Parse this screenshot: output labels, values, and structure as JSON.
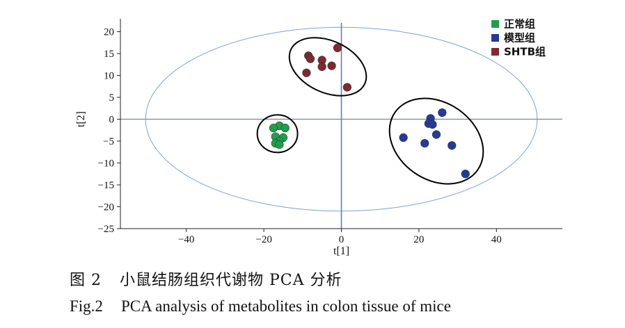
{
  "chart_data": {
    "type": "scatter",
    "title": "",
    "xlabel": "t[1]",
    "ylabel": "t[2]",
    "xlim": [
      -57,
      57
    ],
    "ylim": [
      -25,
      22
    ],
    "xticks": [
      -40,
      -20,
      0,
      20,
      40
    ],
    "yticks": [
      20,
      15,
      10,
      5,
      0,
      -5,
      -10,
      -15,
      -20,
      -25
    ],
    "legend": "top-right",
    "confidence_ellipse": {
      "center": [
        0,
        0
      ],
      "rx": 50.5,
      "ry": 21,
      "color": "#7aa3d6"
    },
    "series": [
      {
        "name": "正常组",
        "color": "#1ea04a",
        "points": [
          [
            -16,
            -1.5
          ],
          [
            -17.5,
            -2
          ],
          [
            -14.5,
            -2
          ],
          [
            -17,
            -4
          ],
          [
            -15,
            -4.2
          ],
          [
            -16,
            -5
          ],
          [
            -17,
            -5.5
          ],
          [
            -16,
            -5.8
          ]
        ],
        "cluster_ellipse": {
          "center": [
            -16.5,
            -3.3
          ],
          "rx": 5.2,
          "ry": 4.3,
          "rotation": 0
        }
      },
      {
        "name": "模型组",
        "color": "#263a9a",
        "points": [
          [
            26,
            1.5
          ],
          [
            23,
            0.2
          ],
          [
            22.5,
            -1
          ],
          [
            23.5,
            -1.2
          ],
          [
            24.5,
            -3.5
          ],
          [
            16,
            -4.2
          ],
          [
            21.5,
            -5.5
          ],
          [
            28.5,
            -6
          ],
          [
            32,
            -12.5
          ]
        ],
        "cluster_ellipse": {
          "center": [
            24.5,
            -5
          ],
          "rx": 13,
          "ry": 8.8,
          "rotation": 35
        }
      },
      {
        "name": "SHTB组",
        "color": "#7e2b30",
        "points": [
          [
            -1,
            16.3
          ],
          [
            -8.5,
            14.5
          ],
          [
            -8,
            13.8
          ],
          [
            -5,
            13.5
          ],
          [
            -5,
            12
          ],
          [
            -2.5,
            12.2
          ],
          [
            -9,
            10.6
          ],
          [
            1.5,
            7.3
          ]
        ],
        "cluster_ellipse": {
          "center": [
            -3.5,
            12
          ],
          "rx": 10.5,
          "ry": 5.9,
          "rotation": 25
        }
      }
    ]
  },
  "caption": {
    "cn_label": "图 2",
    "cn_text": "小鼠结肠组织代谢物 PCA 分析",
    "en_label": "Fig.2",
    "en_text": "PCA analysis of metabolites in colon tissue of mice"
  }
}
